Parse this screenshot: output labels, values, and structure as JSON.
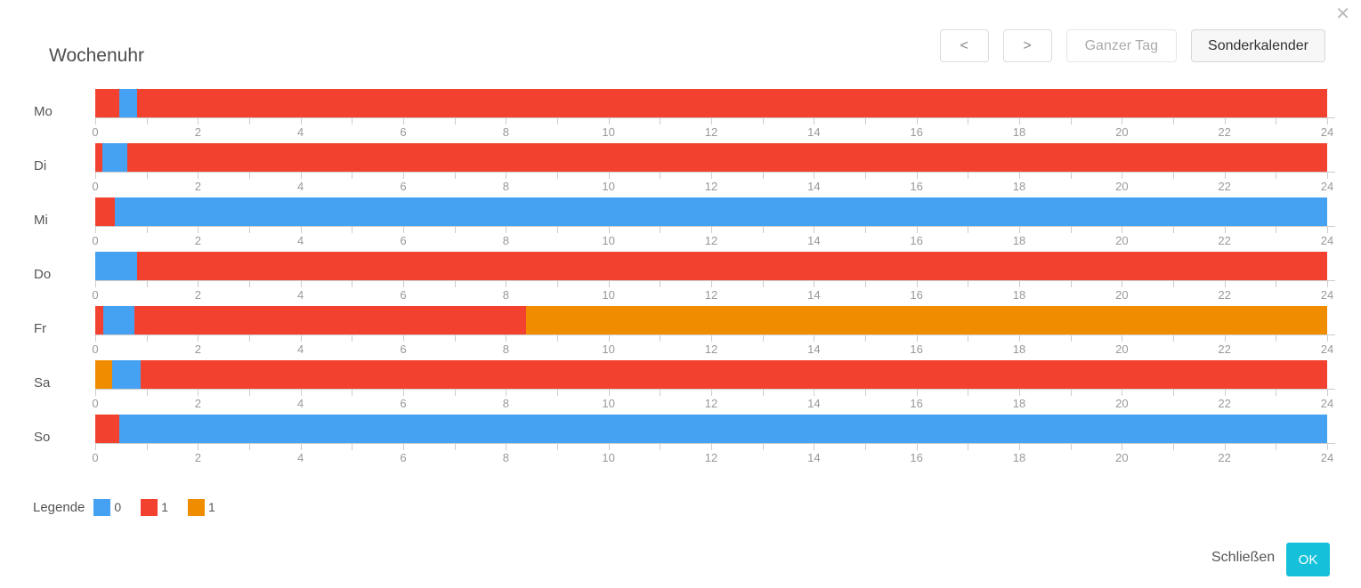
{
  "dialog": {
    "title": "Wochenuhr",
    "close_glyph": "✕"
  },
  "toolbar": {
    "prev_label": "<",
    "next_label": ">",
    "full_day_label": "Ganzer Tag",
    "special_calendar_label": "Sonderkalender"
  },
  "legend": {
    "title": "Legende",
    "items": [
      {
        "color": "blue",
        "label": "0"
      },
      {
        "color": "red",
        "label": "1"
      },
      {
        "color": "orange",
        "label": "1"
      }
    ]
  },
  "footer": {
    "close_label": "Schließen",
    "ok_label": "OK"
  },
  "chart_data": {
    "type": "bar",
    "subtype": "horizontal-stacked-timeline",
    "title": "Wochenuhr",
    "x_axis": {
      "min": 0,
      "max": 24,
      "tick_step": 1,
      "label_step": 2,
      "tick_labels": [
        0,
        2,
        4,
        6,
        8,
        10,
        12,
        14,
        16,
        18,
        20,
        22,
        24
      ]
    },
    "colors": {
      "blue": "#45A1F2",
      "red": "#F3412F",
      "orange": "#F08C00"
    },
    "value_labels": {
      "blue": "0",
      "red": "1",
      "orange": "1"
    },
    "categories": [
      "Mo",
      "Di",
      "Mi",
      "Do",
      "Fr",
      "Sa",
      "So"
    ],
    "rows": [
      {
        "day": "Mo",
        "segments": [
          {
            "start": 0,
            "end": 0.46,
            "color": "red",
            "value": "1"
          },
          {
            "start": 0.46,
            "end": 0.82,
            "color": "blue",
            "value": "0"
          },
          {
            "start": 0.82,
            "end": 24,
            "color": "red",
            "value": "1"
          }
        ]
      },
      {
        "day": "Di",
        "segments": [
          {
            "start": 0,
            "end": 0.14,
            "color": "red",
            "value": "1"
          },
          {
            "start": 0.14,
            "end": 0.63,
            "color": "blue",
            "value": "0"
          },
          {
            "start": 0.63,
            "end": 24,
            "color": "red",
            "value": "1"
          }
        ]
      },
      {
        "day": "Mi",
        "segments": [
          {
            "start": 0,
            "end": 0.38,
            "color": "red",
            "value": "1"
          },
          {
            "start": 0.38,
            "end": 24,
            "color": "blue",
            "value": "0"
          }
        ]
      },
      {
        "day": "Do",
        "segments": [
          {
            "start": 0,
            "end": 0.82,
            "color": "blue",
            "value": "0"
          },
          {
            "start": 0.82,
            "end": 24,
            "color": "red",
            "value": "1"
          }
        ]
      },
      {
        "day": "Fr",
        "segments": [
          {
            "start": 0,
            "end": 0.15,
            "color": "red",
            "value": "1"
          },
          {
            "start": 0.15,
            "end": 0.76,
            "color": "blue",
            "value": "0"
          },
          {
            "start": 0.76,
            "end": 8.4,
            "color": "red",
            "value": "1"
          },
          {
            "start": 8.4,
            "end": 24,
            "color": "orange",
            "value": "1"
          }
        ]
      },
      {
        "day": "Sa",
        "segments": [
          {
            "start": 0,
            "end": 0.33,
            "color": "orange",
            "value": "1"
          },
          {
            "start": 0.33,
            "end": 0.89,
            "color": "blue",
            "value": "0"
          },
          {
            "start": 0.89,
            "end": 24,
            "color": "red",
            "value": "1"
          }
        ]
      },
      {
        "day": "So",
        "segments": [
          {
            "start": 0,
            "end": 0.47,
            "color": "red",
            "value": "1"
          },
          {
            "start": 0.47,
            "end": 24,
            "color": "blue",
            "value": "0"
          }
        ]
      }
    ]
  }
}
